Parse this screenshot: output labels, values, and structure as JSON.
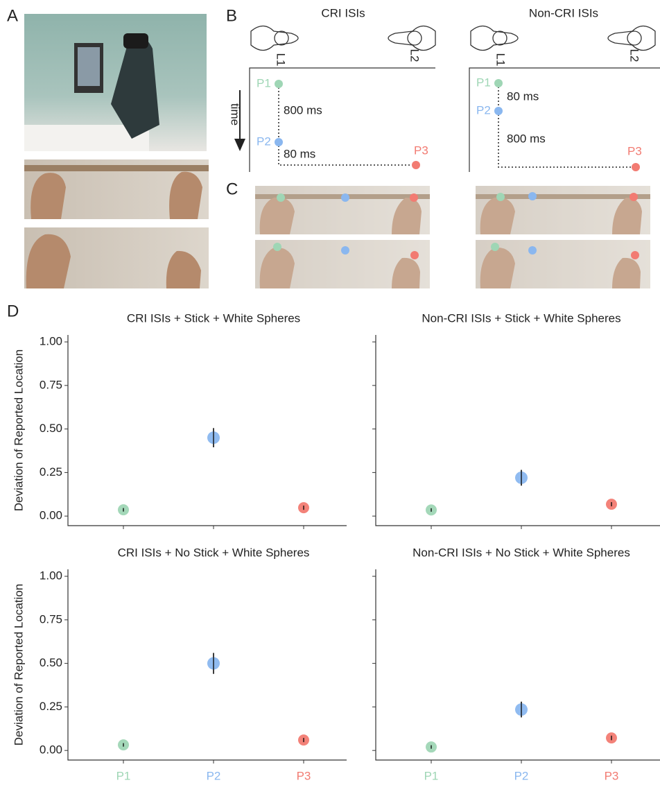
{
  "panel_labels": [
    "A",
    "B",
    "C",
    "D"
  ],
  "diagram": {
    "time_label": "time",
    "conditions": [
      {
        "title": "CRI ISIs",
        "controllers": [
          "L1",
          "L2"
        ],
        "points": [
          "P1",
          "P2",
          "P3"
        ],
        "intervals": [
          "800 ms",
          "80 ms"
        ]
      },
      {
        "title": "Non-CRI ISIs",
        "controllers": [
          "L1",
          "L2"
        ],
        "points": [
          "P1",
          "P2",
          "P3"
        ],
        "intervals": [
          "80 ms",
          "800 ms"
        ]
      }
    ]
  },
  "chart_data": [
    {
      "type": "errorpoint",
      "title": "CRI ISIs + Stick + White Spheres",
      "ylabel": "Deviation of Reported Location",
      "categories": [
        null,
        null,
        null
      ],
      "values": [
        0.036,
        0.45,
        0.048
      ],
      "errors": [
        0.01,
        0.055,
        0.012
      ],
      "colors": [
        "#9fd6b5",
        "#8ab7ef",
        "#f27b72"
      ],
      "ylim": [
        -0.055,
        1.04
      ],
      "yticks": [
        {
          "value": 0,
          "label": "0.00"
        },
        {
          "value": 0.25,
          "label": "0.25"
        },
        {
          "value": 0.5,
          "label": "0.50"
        },
        {
          "value": 0.75,
          "label": "0.75"
        },
        {
          "value": 1,
          "label": "1.00"
        }
      ]
    },
    {
      "type": "errorpoint",
      "title": "Non-CRI ISIs + Stick + White Spheres",
      "categories": [
        null,
        null,
        null
      ],
      "values": [
        0.035,
        0.22,
        0.068
      ],
      "errors": [
        0.01,
        0.045,
        0.012
      ],
      "colors": [
        "#9fd6b5",
        "#8ab7ef",
        "#f27b72"
      ],
      "ylim": [
        -0.055,
        1.04
      ],
      "yticks": [
        0,
        0.25,
        0.5,
        0.75,
        1
      ]
    },
    {
      "type": "errorpoint",
      "title": "CRI ISIs + No Stick + White Spheres",
      "ylabel": "Deviation of Reported Location",
      "categories": [
        "P1",
        "P2",
        "P3"
      ],
      "values": [
        0.032,
        0.5,
        0.06
      ],
      "errors": [
        0.01,
        0.06,
        0.012
      ],
      "colors": [
        "#9fd6b5",
        "#8ab7ef",
        "#f27b72"
      ],
      "ylim": [
        -0.055,
        1.04
      ],
      "yticks": [
        {
          "value": 0,
          "label": "0.00"
        },
        {
          "value": 0.25,
          "label": "0.25"
        },
        {
          "value": 0.5,
          "label": "0.50"
        },
        {
          "value": 0.75,
          "label": "0.75"
        },
        {
          "value": 1,
          "label": "1.00"
        }
      ]
    },
    {
      "type": "errorpoint",
      "title": "Non-CRI ISIs + No Stick + White Spheres",
      "categories": [
        "P1",
        "P2",
        "P3"
      ],
      "values": [
        0.02,
        0.235,
        0.072
      ],
      "errors": [
        0.01,
        0.045,
        0.013
      ],
      "colors": [
        "#9fd6b5",
        "#8ab7ef",
        "#f27b72"
      ],
      "ylim": [
        -0.055,
        1.04
      ],
      "yticks": [
        0,
        0.25,
        0.5,
        0.75,
        1
      ]
    }
  ]
}
